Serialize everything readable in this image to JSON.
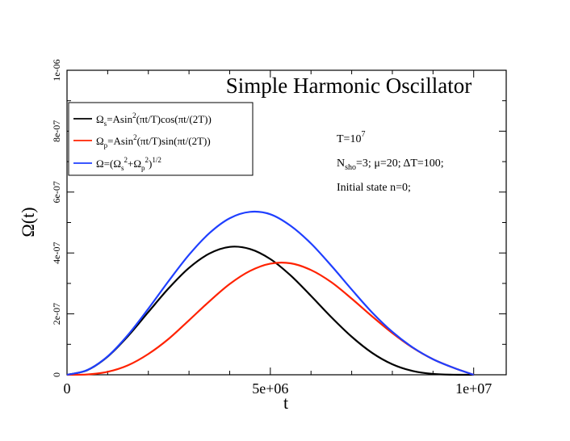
{
  "chart_data": {
    "type": "line",
    "title": "Simple Harmonic Oscillator",
    "xlabel": "t",
    "ylabel": "Ω(t)",
    "xlim": [
      0,
      10800000
    ],
    "ylim": [
      0,
      1e-06
    ],
    "x_ticks": [
      {
        "value": 0,
        "label": "0"
      },
      {
        "value": 5000000,
        "label": "5e+06"
      },
      {
        "value": 10000000,
        "label": "1e+07"
      }
    ],
    "y_ticks": [
      {
        "value": 0,
        "label": "0"
      },
      {
        "value": 2e-07,
        "label": "2e-07"
      },
      {
        "value": 4e-07,
        "label": "4e-07"
      },
      {
        "value": 6e-07,
        "label": "6e-07"
      },
      {
        "value": 8e-07,
        "label": "8e-07"
      },
      {
        "value": 1e-06,
        "label": "1e-06"
      }
    ],
    "series": [
      {
        "name": "Ωs=Asin²(πt/T)cos(πt/(2T))",
        "color": "#000000",
        "x": [
          0,
          500000,
          1000000,
          1500000,
          2000000,
          2500000,
          3000000,
          3500000,
          4000000,
          4500000,
          5000000,
          5500000,
          6000000,
          6500000,
          7000000,
          7500000,
          8000000,
          8500000,
          9000000,
          9500000,
          10000000
        ],
        "y": [
          0,
          1.54e-08,
          5.97e-08,
          1.27e-07,
          2.06e-07,
          2.84e-07,
          3.51e-07,
          3.98e-07,
          4.2e-07,
          4.13e-07,
          3.8e-07,
          3.26e-07,
          2.59e-07,
          1.89e-07,
          1.25e-07,
          7.22e-08,
          3.45e-08,
          1.24e-08,
          2.74e-09,
          1.72e-10,
          0
        ]
      },
      {
        "name": "Ωp=Asin²(πt/T)sin(πt/(2T))",
        "color": "#ff2200",
        "x": [
          0,
          500000,
          1000000,
          1500000,
          2000000,
          2500000,
          3000000,
          3500000,
          4000000,
          4500000,
          5000000,
          5500000,
          6000000,
          6500000,
          7000000,
          7500000,
          8000000,
          8500000,
          9000000,
          9500000,
          10000000
        ],
        "y": [
          0,
          1.22e-09,
          9.69e-09,
          3.11e-08,
          6.83e-08,
          1.18e-07,
          1.79e-07,
          2.41e-07,
          2.98e-07,
          3.41e-07,
          3.65e-07,
          3.66e-07,
          3.44e-07,
          3.04e-07,
          2.5e-07,
          1.92e-07,
          1.37e-07,
          8.89e-08,
          5.1e-08,
          2.32e-08,
          0
        ]
      },
      {
        "name": "Ω=(Ωs²+Ωp²)^1/2",
        "color": "#1f3fff",
        "x": [
          0,
          500000,
          1000000,
          1500000,
          2000000,
          2500000,
          3000000,
          3500000,
          4000000,
          4500000,
          5000000,
          5500000,
          6000000,
          6500000,
          7000000,
          7500000,
          8000000,
          8500000,
          9000000,
          9500000,
          10000000
        ],
        "y": [
          0,
          1.55e-08,
          6.05e-08,
          1.31e-07,
          2.17e-07,
          3.08e-07,
          3.94e-07,
          4.65e-07,
          5.14e-07,
          5.35e-07,
          5.27e-07,
          4.89e-07,
          4.31e-07,
          3.58e-07,
          2.8e-07,
          2.05e-07,
          1.41e-07,
          8.98e-08,
          5.11e-08,
          2.32e-08,
          0
        ]
      }
    ],
    "legend": {
      "location": "upper-left",
      "entries": [
        {
          "main": "Ω",
          "sub": "s",
          "rest": "=Asin",
          "sup": "2",
          "tail": "(πt/T)cos(πt/(2T))",
          "color": "#000000"
        },
        {
          "main": "Ω",
          "sub": "p",
          "rest": "=Asin",
          "sup": "2",
          "tail": "(πt/T)sin(πt/(2T))",
          "color": "#ff2200"
        },
        {
          "main": "Ω=(Ω",
          "sub": "s",
          "sup2": "2",
          "mid": "+Ω",
          "sub2": "p",
          "sup3": "2",
          "close": ")",
          "sup4": "1/2",
          "color": "#1f3fff"
        }
      ]
    },
    "annotations": {
      "period": {
        "base": "T=10",
        "sup": "7"
      },
      "params": {
        "n": "N",
        "n_sub": "sho",
        "rest": "=3;  μ=20; ΔT=100;"
      },
      "initial": "Initial state n=0;"
    }
  }
}
